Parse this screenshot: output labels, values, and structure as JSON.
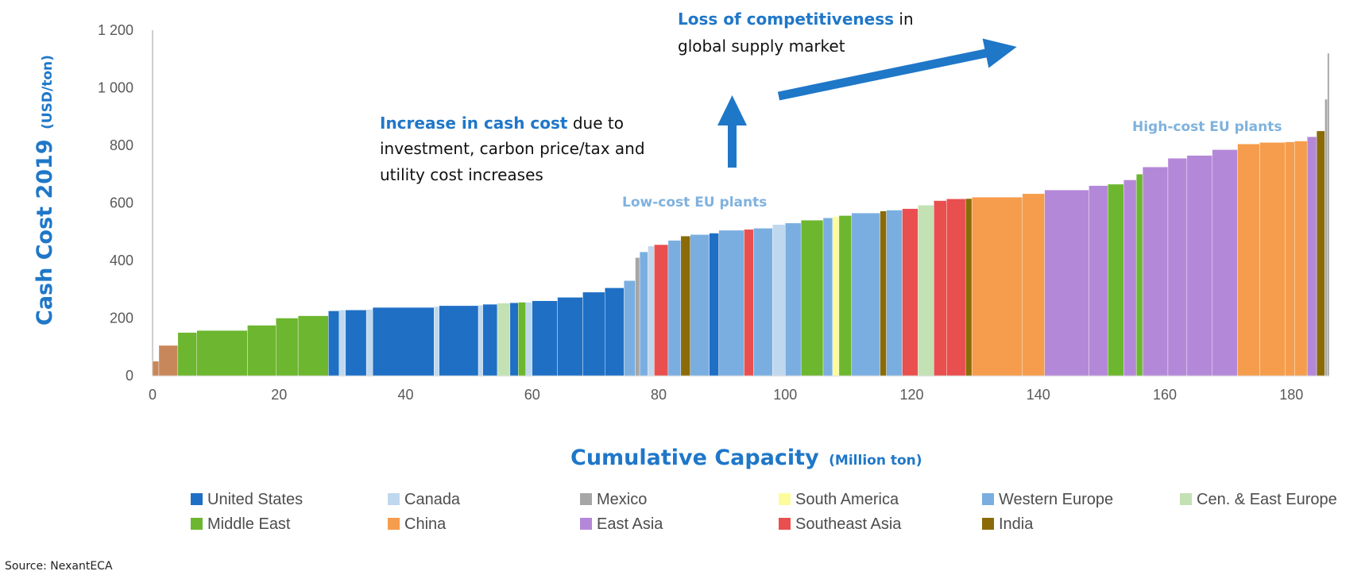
{
  "chart_data": {
    "type": "bar",
    "subtype": "cost-curve",
    "title": "",
    "ylabel": "Cash Cost 2019",
    "ylabel_unit": "(USD/ton)",
    "xlabel": "Cumulative Capacity",
    "xlabel_unit": "(Million ton)",
    "xlim": [
      0,
      186
    ],
    "ylim": [
      0,
      1200
    ],
    "x_ticks": [
      "0",
      "20",
      "40",
      "60",
      "80",
      "100",
      "120",
      "140",
      "160",
      "180"
    ],
    "y_ticks": [
      "0",
      "200",
      "400",
      "600",
      "800",
      "1 000",
      "1 200"
    ],
    "grid": false,
    "legend_position": "bottom",
    "colors": {
      "United States": "#1f6fc5",
      "Canada": "#bfd8ee",
      "Mexico": "#a6a6a6",
      "South America": "#fcfc9c",
      "Western Europe": "#7aaee0",
      "Cen. & East Europe": "#c3e1b3",
      "Middle East": "#6db62f",
      "China": "#f59d4c",
      "East Asia": "#b488d8",
      "Southeast Asia": "#e94f4f",
      "India": "#8b6b08",
      "Other": "#c8875a"
    },
    "legend": [
      "United States",
      "Canada",
      "Mexico",
      "South America",
      "Western Europe",
      "Cen. & East Europe",
      "Middle East",
      "China",
      "East Asia",
      "Southeast Asia",
      "India"
    ],
    "segments": [
      {
        "x0": 0.0,
        "x1": 1.0,
        "y": 50,
        "region": "Other"
      },
      {
        "x0": 1.0,
        "x1": 4.0,
        "y": 105,
        "region": "Other"
      },
      {
        "x0": 4.0,
        "x1": 7.0,
        "y": 150,
        "region": "Middle East"
      },
      {
        "x0": 7.0,
        "x1": 15.0,
        "y": 157,
        "region": "Middle East"
      },
      {
        "x0": 15.0,
        "x1": 19.5,
        "y": 175,
        "region": "Middle East"
      },
      {
        "x0": 19.5,
        "x1": 23.0,
        "y": 200,
        "region": "Middle East"
      },
      {
        "x0": 23.0,
        "x1": 27.8,
        "y": 208,
        "region": "Middle East"
      },
      {
        "x0": 27.8,
        "x1": 29.5,
        "y": 225,
        "region": "United States"
      },
      {
        "x0": 29.5,
        "x1": 30.5,
        "y": 228,
        "region": "Canada"
      },
      {
        "x0": 30.5,
        "x1": 33.8,
        "y": 228,
        "region": "United States"
      },
      {
        "x0": 33.8,
        "x1": 34.8,
        "y": 230,
        "region": "Canada"
      },
      {
        "x0": 34.8,
        "x1": 44.5,
        "y": 237,
        "region": "United States"
      },
      {
        "x0": 44.5,
        "x1": 45.3,
        "y": 240,
        "region": "Canada"
      },
      {
        "x0": 45.3,
        "x1": 51.5,
        "y": 243,
        "region": "United States"
      },
      {
        "x0": 51.5,
        "x1": 52.2,
        "y": 245,
        "region": "Canada"
      },
      {
        "x0": 52.2,
        "x1": 54.5,
        "y": 248,
        "region": "United States"
      },
      {
        "x0": 54.5,
        "x1": 56.5,
        "y": 252,
        "region": "Cen. & East Europe"
      },
      {
        "x0": 56.5,
        "x1": 57.8,
        "y": 253,
        "region": "United States"
      },
      {
        "x0": 57.8,
        "x1": 59.0,
        "y": 255,
        "region": "Middle East"
      },
      {
        "x0": 59.0,
        "x1": 60.0,
        "y": 255,
        "region": "Canada"
      },
      {
        "x0": 60.0,
        "x1": 64.0,
        "y": 260,
        "region": "United States"
      },
      {
        "x0": 64.0,
        "x1": 68.0,
        "y": 272,
        "region": "United States"
      },
      {
        "x0": 68.0,
        "x1": 71.5,
        "y": 290,
        "region": "United States"
      },
      {
        "x0": 71.5,
        "x1": 74.5,
        "y": 305,
        "region": "United States"
      },
      {
        "x0": 74.5,
        "x1": 76.3,
        "y": 330,
        "region": "Western Europe"
      },
      {
        "x0": 76.3,
        "x1": 77.0,
        "y": 410,
        "region": "Mexico"
      },
      {
        "x0": 77.0,
        "x1": 78.3,
        "y": 430,
        "region": "Western Europe"
      },
      {
        "x0": 78.3,
        "x1": 79.3,
        "y": 450,
        "region": "Canada"
      },
      {
        "x0": 79.3,
        "x1": 81.5,
        "y": 455,
        "region": "Southeast Asia"
      },
      {
        "x0": 81.5,
        "x1": 83.5,
        "y": 470,
        "region": "Western Europe"
      },
      {
        "x0": 83.5,
        "x1": 85.0,
        "y": 485,
        "region": "India"
      },
      {
        "x0": 85.0,
        "x1": 88.0,
        "y": 490,
        "region": "Western Europe"
      },
      {
        "x0": 88.0,
        "x1": 89.5,
        "y": 495,
        "region": "United States"
      },
      {
        "x0": 89.5,
        "x1": 93.5,
        "y": 505,
        "region": "Western Europe"
      },
      {
        "x0": 93.5,
        "x1": 95.0,
        "y": 508,
        "region": "Southeast Asia"
      },
      {
        "x0": 95.0,
        "x1": 98.0,
        "y": 512,
        "region": "Western Europe"
      },
      {
        "x0": 98.0,
        "x1": 100.0,
        "y": 525,
        "region": "Canada"
      },
      {
        "x0": 100.0,
        "x1": 102.5,
        "y": 530,
        "region": "Western Europe"
      },
      {
        "x0": 102.5,
        "x1": 106.0,
        "y": 540,
        "region": "Middle East"
      },
      {
        "x0": 106.0,
        "x1": 107.5,
        "y": 548,
        "region": "Western Europe"
      },
      {
        "x0": 107.5,
        "x1": 108.5,
        "y": 552,
        "region": "South America"
      },
      {
        "x0": 108.5,
        "x1": 110.5,
        "y": 556,
        "region": "Middle East"
      },
      {
        "x0": 110.5,
        "x1": 115.0,
        "y": 565,
        "region": "Western Europe"
      },
      {
        "x0": 115.0,
        "x1": 116.0,
        "y": 572,
        "region": "India"
      },
      {
        "x0": 116.0,
        "x1": 118.5,
        "y": 575,
        "region": "Western Europe"
      },
      {
        "x0": 118.5,
        "x1": 121.0,
        "y": 580,
        "region": "Southeast Asia"
      },
      {
        "x0": 121.0,
        "x1": 123.5,
        "y": 592,
        "region": "Cen. & East Europe"
      },
      {
        "x0": 123.5,
        "x1": 125.5,
        "y": 608,
        "region": "Southeast Asia"
      },
      {
        "x0": 125.5,
        "x1": 128.5,
        "y": 614,
        "region": "Southeast Asia"
      },
      {
        "x0": 128.5,
        "x1": 129.5,
        "y": 615,
        "region": "India"
      },
      {
        "x0": 129.5,
        "x1": 137.5,
        "y": 620,
        "region": "China"
      },
      {
        "x0": 137.5,
        "x1": 141.0,
        "y": 632,
        "region": "China"
      },
      {
        "x0": 141.0,
        "x1": 148.0,
        "y": 645,
        "region": "East Asia"
      },
      {
        "x0": 148.0,
        "x1": 151.0,
        "y": 660,
        "region": "East Asia"
      },
      {
        "x0": 151.0,
        "x1": 153.5,
        "y": 665,
        "region": "Middle East"
      },
      {
        "x0": 153.5,
        "x1": 155.5,
        "y": 680,
        "region": "East Asia"
      },
      {
        "x0": 155.5,
        "x1": 156.5,
        "y": 700,
        "region": "Middle East"
      },
      {
        "x0": 156.5,
        "x1": 160.5,
        "y": 725,
        "region": "East Asia"
      },
      {
        "x0": 160.5,
        "x1": 163.5,
        "y": 755,
        "region": "East Asia"
      },
      {
        "x0": 163.5,
        "x1": 167.5,
        "y": 765,
        "region": "East Asia"
      },
      {
        "x0": 167.5,
        "x1": 171.5,
        "y": 785,
        "region": "East Asia"
      },
      {
        "x0": 171.5,
        "x1": 175.0,
        "y": 805,
        "region": "China"
      },
      {
        "x0": 175.0,
        "x1": 179.0,
        "y": 810,
        "region": "China"
      },
      {
        "x0": 179.0,
        "x1": 180.5,
        "y": 812,
        "region": "China"
      },
      {
        "x0": 180.5,
        "x1": 182.5,
        "y": 815,
        "region": "China"
      },
      {
        "x0": 182.5,
        "x1": 184.0,
        "y": 830,
        "region": "East Asia"
      },
      {
        "x0": 184.0,
        "x1": 185.3,
        "y": 850,
        "region": "India"
      },
      {
        "x0": 185.3,
        "x1": 185.7,
        "y": 960,
        "region": "Mexico"
      },
      {
        "x0": 185.7,
        "x1": 186.0,
        "y": 1120,
        "region": "Mexico"
      }
    ],
    "annotations": {
      "loss_bold": "Loss of competitiveness",
      "loss_rest": " in",
      "loss_line2": "global supply market",
      "increase_bold": "Increase in cash cost",
      "increase_rest": " due to",
      "increase_line2": "investment, carbon price/tax and",
      "increase_line3": "utility cost increases",
      "low_cost": "Low-cost EU plants",
      "high_cost": "High-cost EU plants"
    }
  },
  "source": "Source: NexantECA"
}
